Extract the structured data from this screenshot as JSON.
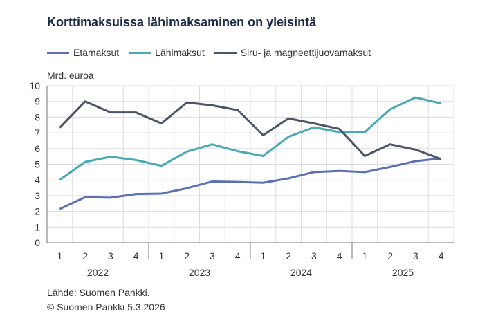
{
  "chart_data": {
    "type": "line",
    "title": "Korttimaksuissa lähimaksaminen on yleisintä",
    "ylabel": "Mrd. euroa",
    "ylim": [
      0,
      10
    ],
    "yticks": [
      "0",
      "1",
      "2",
      "3",
      "4",
      "5",
      "6",
      "7",
      "8",
      "9",
      "10"
    ],
    "quarters": [
      "1",
      "2",
      "3",
      "4",
      "1",
      "2",
      "3",
      "4",
      "1",
      "2",
      "3",
      "4",
      "1",
      "2",
      "3",
      "4"
    ],
    "years": [
      "2022",
      "2023",
      "2024",
      "2025"
    ],
    "grid": true,
    "legend_position": "top",
    "series": [
      {
        "name": "Etämaksut",
        "color": "#5b6fb5",
        "values": [
          2.15,
          2.9,
          2.87,
          3.1,
          3.13,
          3.47,
          3.9,
          3.87,
          3.82,
          4.1,
          4.5,
          4.57,
          4.5,
          4.83,
          5.2,
          5.37
        ]
      },
      {
        "name": "Lähimaksut",
        "color": "#45aab2",
        "values": [
          4.0,
          5.15,
          5.48,
          5.27,
          4.9,
          5.8,
          6.27,
          5.83,
          5.53,
          6.75,
          7.35,
          7.05,
          7.05,
          8.5,
          9.25,
          8.87
        ]
      },
      {
        "name": "Siru- ja magneettijuovamaksut",
        "color": "#4a5566",
        "values": [
          7.33,
          9.0,
          8.3,
          8.3,
          7.6,
          8.93,
          8.75,
          8.45,
          6.85,
          7.92,
          7.6,
          7.25,
          5.53,
          6.27,
          5.93,
          5.33
        ]
      }
    ]
  },
  "source": "Lähde: Suomen Pankki.",
  "copyright": "© Suomen Pankki 5.3.2026"
}
